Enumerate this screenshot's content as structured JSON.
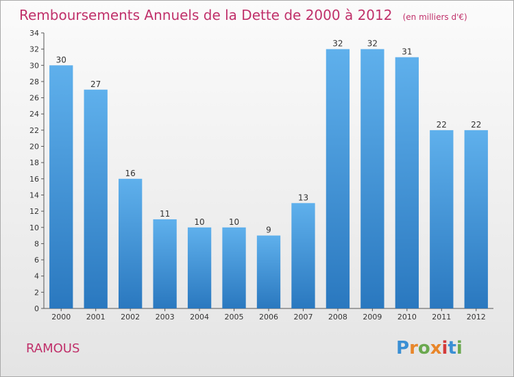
{
  "chart_data": {
    "type": "bar",
    "title": "Remboursements Annuels de la Dette de 2000 à 2012",
    "subtitle": "(en milliers d'€)",
    "categories": [
      "2000",
      "2001",
      "2002",
      "2003",
      "2004",
      "2005",
      "2006",
      "2007",
      "2008",
      "2009",
      "2010",
      "2011",
      "2012"
    ],
    "values": [
      30,
      27,
      16,
      11,
      10,
      10,
      9,
      13,
      32,
      32,
      31,
      22,
      22
    ],
    "ylim": [
      0,
      34
    ],
    "yticks": [
      0,
      2,
      4,
      6,
      8,
      10,
      12,
      14,
      16,
      18,
      20,
      22,
      24,
      26,
      28,
      30,
      32,
      34
    ],
    "grid": false,
    "bar_color": "#3a8fd4",
    "title_color": "#c0306a"
  },
  "footer": {
    "place": "RAMOUS",
    "brand": "Proxiti"
  }
}
